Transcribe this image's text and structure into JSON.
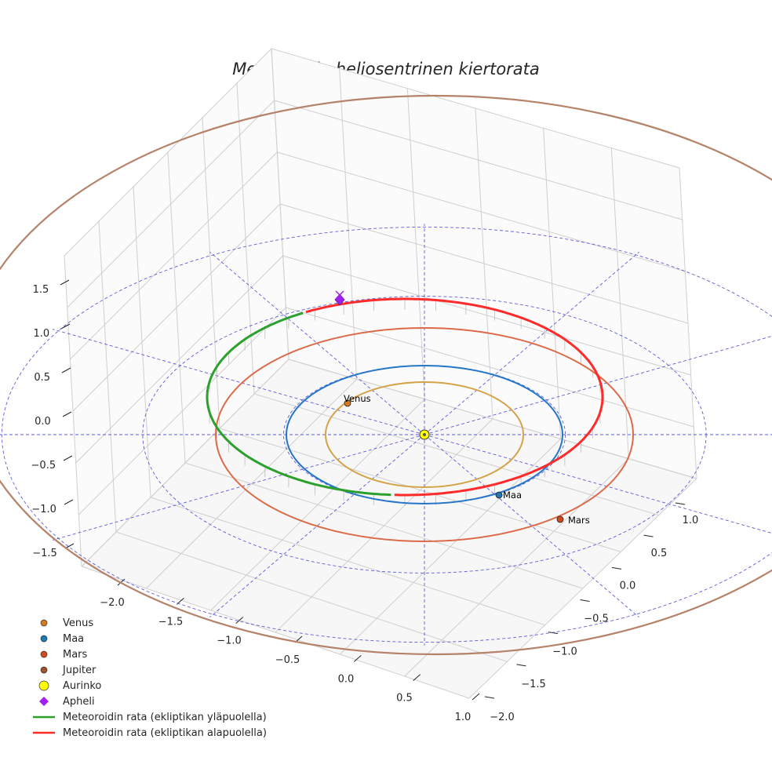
{
  "chart_data": {
    "type": "line3d",
    "title": "Meteoroidin heliosentrinen kiertorata",
    "axes": {
      "x": {
        "range": [
          -2.0,
          1.0
        ],
        "ticks": [
          "−2.0",
          "−1.5",
          "−1.0",
          "−0.5",
          "0.0",
          "0.5",
          "1.0"
        ]
      },
      "y": {
        "range": [
          -2.0,
          1.0
        ],
        "ticks": [
          "−2.0",
          "−1.5",
          "−1.0",
          "−0.5",
          "0.0",
          "0.5",
          "1.0"
        ]
      },
      "z": {
        "range": [
          -1.5,
          1.5
        ],
        "ticks": [
          "−1.5",
          "−1.0",
          "−0.5",
          "0.0",
          "0.5",
          "1.0",
          "1.5"
        ]
      }
    },
    "orbits": [
      {
        "name": "Venus",
        "radius_au": 0.72,
        "color": "#d4a248"
      },
      {
        "name": "Maa",
        "radius_au": 1.0,
        "color": "#2676c8"
      },
      {
        "name": "Mars",
        "radius_au": 1.52,
        "color": "#dc6a48"
      },
      {
        "name": "Jupiter",
        "radius_au": 5.2,
        "color": "#b5826a"
      }
    ],
    "planets": [
      {
        "name": "Venus",
        "label": "Venus",
        "x": -0.28,
        "y": 0.67,
        "color": "#d17a1e"
      },
      {
        "name": "Maa",
        "label": "Maa",
        "x": 0.27,
        "y": -0.96,
        "color": "#1f77b4"
      },
      {
        "name": "Mars",
        "label": "Mars",
        "x": 0.49,
        "y": -1.26,
        "color": "#d04a1e"
      }
    ],
    "sun": {
      "label": "Aurinko",
      "color": "#ffff00"
    },
    "meteoroid": {
      "a_au": 1.38,
      "e": 0.33,
      "perihelion_au": 0.92,
      "aphelion_au": 1.84,
      "above_label": "Meteoroidin rata (ekliptikan yläpuolella)",
      "below_label": "Meteoroidin rata (ekliptikan alapuolella)",
      "above_color": "#2ca02c",
      "below_color": "#ff2a2a"
    },
    "apheli": {
      "label": "Apheli",
      "color": "#a020f0"
    },
    "ecliptic_grid": {
      "radii_au": [
        1.0,
        2.0,
        3.0
      ],
      "spokes": 12,
      "color": "#4b4bd6"
    },
    "legend": [
      {
        "label": "Venus",
        "kind": "dot",
        "color": "#d17a1e"
      },
      {
        "label": "Maa",
        "kind": "dot",
        "color": "#1f77b4"
      },
      {
        "label": "Mars",
        "kind": "dot",
        "color": "#d04a1e"
      },
      {
        "label": "Jupiter",
        "kind": "dot",
        "color": "#a0522d"
      },
      {
        "label": "Aurinko",
        "kind": "sun",
        "color": "#ffff00"
      },
      {
        "label": "Apheli",
        "kind": "diamond",
        "color": "#a020f0"
      },
      {
        "label": "Meteoroidin rata (ekliptikan yläpuolella)",
        "kind": "line",
        "color": "#2ca02c"
      },
      {
        "label": "Meteoroidin rata (ekliptikan alapuolella)",
        "kind": "line",
        "color": "#ff2a2a"
      }
    ]
  }
}
